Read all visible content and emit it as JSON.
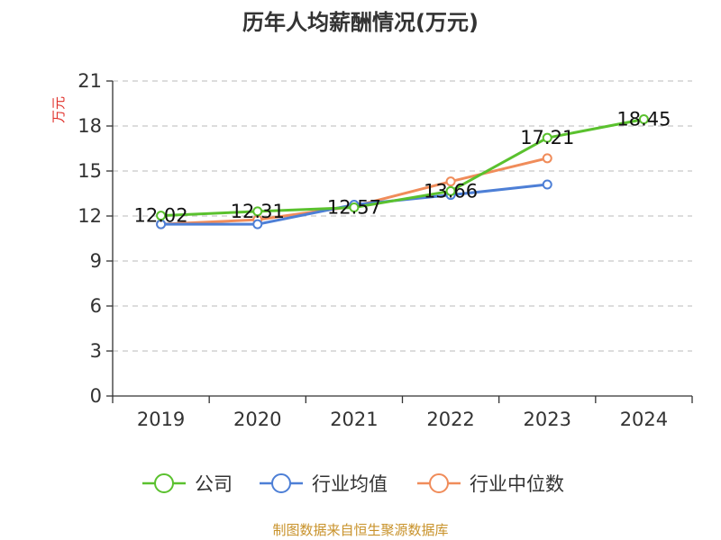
{
  "chart_data": {
    "type": "line",
    "title": "历年人均薪酬情况(万元)",
    "ylabel": "万元",
    "xlabel": "",
    "categories": [
      "2019",
      "2020",
      "2021",
      "2022",
      "2023",
      "2024"
    ],
    "ylim": [
      0,
      21
    ],
    "yticks": [
      0,
      3,
      6,
      9,
      12,
      15,
      18,
      21
    ],
    "grid": true,
    "legend_position": "bottom",
    "series": [
      {
        "name": "公司",
        "color": "#5ac12e",
        "values": [
          12.02,
          12.31,
          12.57,
          13.66,
          17.21,
          18.45
        ],
        "labels": [
          "12.02",
          "12.31",
          "12.57",
          "13.66",
          "17.21",
          "18.45"
        ]
      },
      {
        "name": "行业均值",
        "color": "#4d7fd6",
        "values": [
          11.45,
          11.45,
          12.75,
          13.4,
          14.1,
          null
        ]
      },
      {
        "name": "行业中位数",
        "color": "#f08c5a",
        "values": [
          11.45,
          11.75,
          12.65,
          14.3,
          15.85,
          null
        ]
      }
    ]
  },
  "source": "制图数据来自恒生聚源数据库",
  "colors": {
    "axis": "#333333",
    "grid": "#c8c8c8",
    "ylabel": "#e0312b",
    "source": "#c8922a"
  }
}
